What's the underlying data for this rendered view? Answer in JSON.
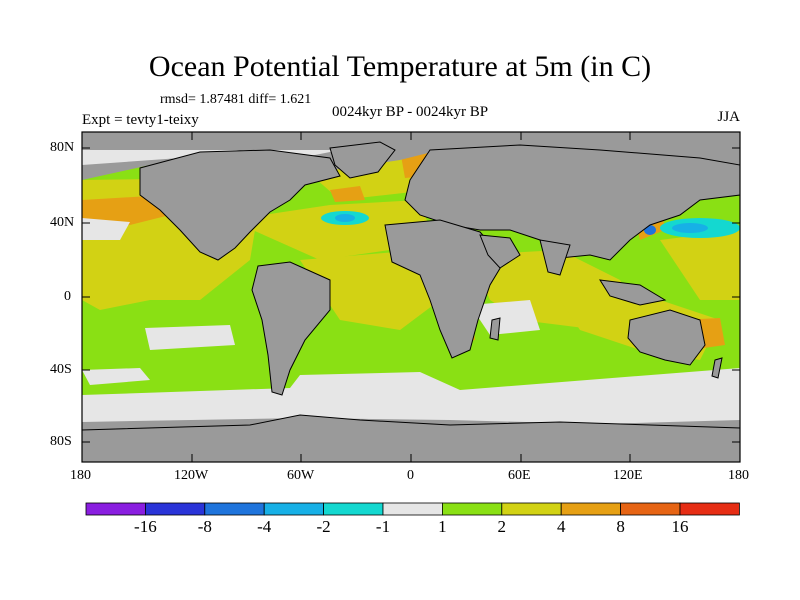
{
  "title": "Ocean Potential Temperature at 5m (in C)",
  "stats": "rmsd= 1.87481 diff= 1.621",
  "experiment": "Expt = tevty1-teixy",
  "period": "0024kyr BP - 0024kyr BP",
  "season": "JJA",
  "lat_ticks": [
    "80N",
    "40N",
    "0",
    "40S",
    "80S"
  ],
  "lon_ticks": [
    "180",
    "120W",
    "60W",
    "0",
    "60E",
    "120E",
    "180"
  ],
  "colorbar": {
    "labels": [
      "-16",
      "-8",
      "-4",
      "-2",
      "-1",
      "1",
      "2",
      "4",
      "8",
      "16"
    ],
    "colors": [
      "#8a1ee0",
      "#2a34d8",
      "#1f74dc",
      "#17b0e6",
      "#14d8d0",
      "#e6e6e6",
      "#8ae014",
      "#d2d214",
      "#e6a014",
      "#e66414",
      "#e62d14"
    ]
  },
  "land_color": "#9a9a9a",
  "ice_color": "#e6e6e6"
}
